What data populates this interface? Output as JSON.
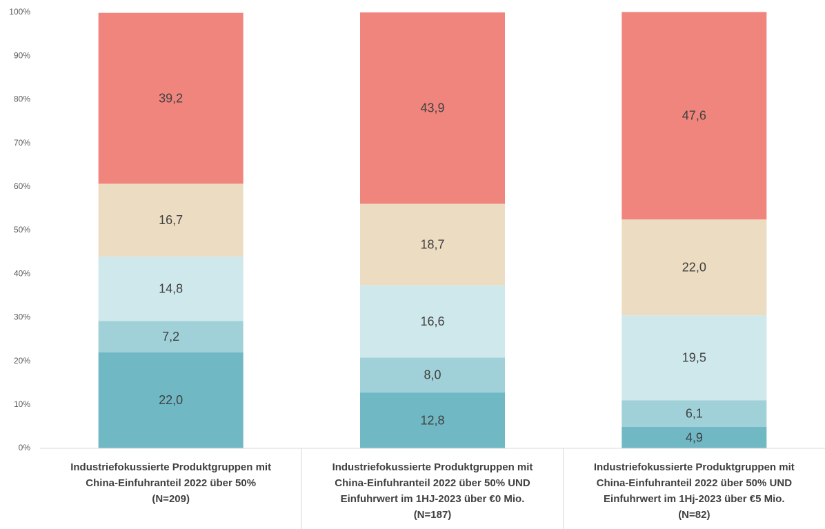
{
  "chart_data": {
    "type": "stacked_bar",
    "categories": [
      [
        "Industriefokussierte Produktgruppen mit",
        "China-Einfuhranteil 2022 über 50%",
        "(N=209)"
      ],
      [
        "Industriefokussierte Produktgruppen mit",
        "China-Einfuhranteil 2022 über 50% UND",
        "Einfuhrwert im 1HJ-2023 über €0 Mio.",
        "(N=187)"
      ],
      [
        "Industriefokussierte Produktgruppen mit",
        "China-Einfuhranteil 2022 über 50% UND",
        "Einfuhrwert im 1Hj-2023 über €5 Mio.",
        "(N=82)"
      ]
    ],
    "series": [
      {
        "color": "#6fb8c4",
        "values": [
          22.0,
          12.8,
          4.9
        ],
        "value_labels": [
          "22,0",
          "12,8",
          "4,9"
        ]
      },
      {
        "color": "#a0d1d8",
        "values": [
          7.2,
          8.0,
          6.1
        ],
        "value_labels": [
          "7,2",
          "8,0",
          "6,1"
        ]
      },
      {
        "color": "#cfe8ec",
        "values": [
          14.8,
          16.6,
          19.5
        ],
        "value_labels": [
          "14,8",
          "16,6",
          "19,5"
        ]
      },
      {
        "color": "#ecdcc1",
        "values": [
          16.7,
          18.7,
          22.0
        ],
        "value_labels": [
          "16,7",
          "18,7",
          "22,0"
        ]
      },
      {
        "color": "#f0857e",
        "values": [
          39.2,
          43.9,
          47.6
        ],
        "value_labels": [
          "39,2",
          "43,9",
          "47,6"
        ]
      }
    ],
    "ylim": [
      0,
      100
    ],
    "yticks": [
      {
        "value": 0,
        "label": "0%"
      },
      {
        "value": 10,
        "label": "10%"
      },
      {
        "value": 20,
        "label": "20%"
      },
      {
        "value": 30,
        "label": "30%"
      },
      {
        "value": 40,
        "label": "40%"
      },
      {
        "value": 50,
        "label": "50%"
      },
      {
        "value": 60,
        "label": "60%"
      },
      {
        "value": 70,
        "label": "70%"
      },
      {
        "value": 80,
        "label": "80%"
      },
      {
        "value": 90,
        "label": "90%"
      },
      {
        "value": 100,
        "label": "100%"
      }
    ]
  }
}
